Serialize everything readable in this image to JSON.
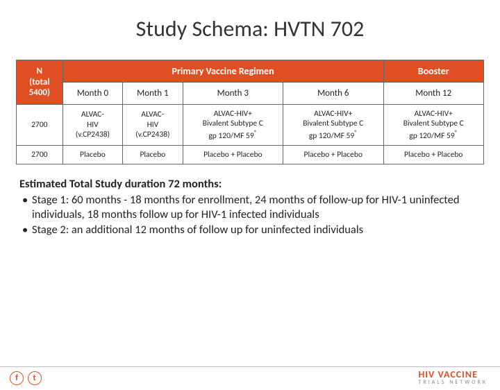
{
  "title": "Study Schema: HVTN 702",
  "table": {
    "n_header": "N\n(total 5400)",
    "primary_header": "Primary Vaccine Regimen",
    "booster_header": "Booster",
    "months": [
      "Month 0",
      "Month 1",
      "Month 3",
      "Month 6",
      "Month 12"
    ],
    "rows": [
      {
        "n": "2700",
        "cells": [
          "ALVAC-HIV (v.CP2438)",
          "ALVAC-HIV (v.CP2438)",
          "ALVAC-HIV+ Bivalent Subtype C gp 120/MF 59®",
          "ALVAC-HIV+ Bivalent Subtype C gp 120/MF 59®",
          "ALVAC-HIV+ Bivalent Subtype C gp 120/MF 59®"
        ]
      },
      {
        "n": "2700",
        "cells": [
          "Placebo",
          "Placebo",
          "Placebo + Placebo",
          "Placebo + Placebo",
          "Placebo + Placebo"
        ]
      }
    ]
  },
  "notes": {
    "heading": "Estimated Total Study duration 72 months:",
    "bullets": [
      "Stage 1: 60 months - 18 months for enrollment, 24 months of follow-up for HIV-1 uninfected individuals, 18 months follow up for HIV-1 infected individuals",
      "Stage 2: an additional 12 months of follow up for uninfected individuals"
    ]
  },
  "footer": {
    "social": [
      "f",
      "t"
    ],
    "logo_main": "HIV VACCINE",
    "logo_sub": "TRIALS NETWORK"
  },
  "colors": {
    "accent": "#e04e24",
    "text": "#222222",
    "border": "#666666"
  }
}
